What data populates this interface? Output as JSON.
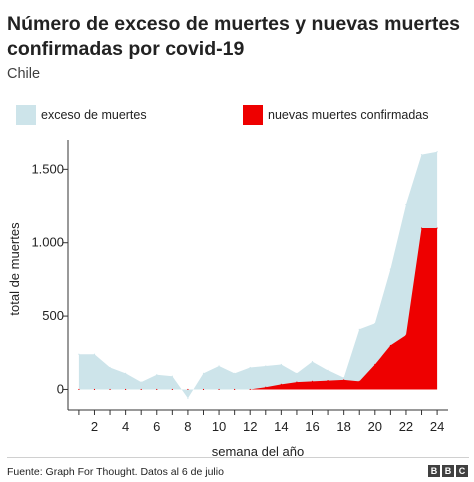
{
  "title": "Número de exceso de muertes y nuevas muertes confirmadas por covid-19",
  "subtitle": "Chile",
  "source": "Fuente: Graph For Thought. Datos al 6 de julio",
  "logo_text": "BBC",
  "colors": {
    "excess": "#cde4ea",
    "confirmed": "#ee0000",
    "axis": "#333333"
  },
  "chart_data": {
    "type": "area",
    "title": "Número de exceso de muertes y nuevas muertes confirmadas por covid-19",
    "subtitle": "Chile",
    "xlabel": "semana del año",
    "ylabel": "total de muertes",
    "xlim": [
      0.3,
      24.7
    ],
    "ylim": [
      -140,
      1700
    ],
    "x_ticks": [
      2,
      4,
      6,
      8,
      10,
      12,
      14,
      16,
      18,
      20,
      22,
      24
    ],
    "y_ticks": [
      0,
      500,
      1000,
      1500
    ],
    "y_tick_labels": [
      "0",
      "500",
      "1.000",
      "1.500"
    ],
    "grid": false,
    "legend_position": "top",
    "series": [
      {
        "name": "exceso de muertes",
        "color": "#cde4ea",
        "x": [
          1,
          2,
          3,
          4,
          5,
          6,
          7,
          8,
          9,
          10,
          11,
          12,
          13,
          14,
          15,
          16,
          17,
          18,
          19,
          20,
          21,
          22,
          23,
          24
        ],
        "values": [
          240,
          240,
          150,
          110,
          50,
          100,
          90,
          -60,
          110,
          160,
          110,
          150,
          160,
          170,
          110,
          190,
          130,
          80,
          410,
          450,
          820,
          1260,
          1600,
          1620
        ]
      },
      {
        "name": "nuevas muertes confirmadas",
        "color": "#ee0000",
        "x": [
          1,
          2,
          3,
          4,
          5,
          6,
          7,
          8,
          9,
          10,
          11,
          12,
          13,
          14,
          15,
          16,
          17,
          18,
          19,
          20,
          21,
          22,
          23,
          24
        ],
        "values": [
          0,
          0,
          0,
          0,
          0,
          0,
          0,
          0,
          0,
          0,
          0,
          0,
          15,
          35,
          50,
          55,
          60,
          65,
          55,
          170,
          300,
          370,
          1100,
          1100
        ]
      }
    ]
  }
}
